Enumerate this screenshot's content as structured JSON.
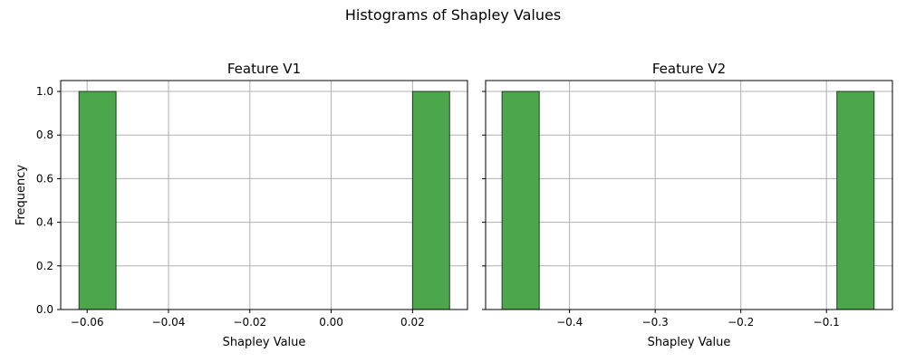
{
  "figure": {
    "suptitle": "Histograms of Shapley Values"
  },
  "colors": {
    "bar_fill": "#4ca64c",
    "bar_edge": "#1f3d1f",
    "grid": "#b0b0b0",
    "axis": "#000000"
  },
  "chart_data": [
    {
      "type": "bar",
      "title": "Feature V1",
      "xlabel": "Shapley Value",
      "ylabel": "Frequency",
      "xlim": [
        -0.0665,
        0.0335
      ],
      "ylim": [
        0.0,
        1.05
      ],
      "xticks": [
        -0.06,
        -0.04,
        -0.02,
        0.0,
        0.02
      ],
      "xtick_labels": [
        "−0.06",
        "−0.04",
        "−0.02",
        "0.00",
        "0.02"
      ],
      "yticks": [
        0.0,
        0.2,
        0.4,
        0.6,
        0.8,
        1.0
      ],
      "ytick_labels": [
        "0.0",
        "0.2",
        "0.4",
        "0.6",
        "0.8",
        "1.0"
      ],
      "grid": true,
      "bins": [
        {
          "x0": -0.062,
          "x1": -0.0529,
          "value": 1
        },
        {
          "x0": 0.02,
          "x1": 0.0291,
          "value": 1
        }
      ]
    },
    {
      "type": "bar",
      "title": "Feature V2",
      "xlabel": "Shapley Value",
      "ylabel": "",
      "xlim": [
        -0.498,
        -0.023
      ],
      "ylim": [
        0.0,
        1.05
      ],
      "xticks": [
        -0.4,
        -0.3,
        -0.2,
        -0.1
      ],
      "xtick_labels": [
        "−0.4",
        "−0.3",
        "−0.2",
        "−0.1"
      ],
      "yticks": [
        0.0,
        0.2,
        0.4,
        0.6,
        0.8,
        1.0
      ],
      "ytick_labels": [
        "",
        "",
        "",
        "",
        "",
        ""
      ],
      "grid": true,
      "bins": [
        {
          "x0": -0.4788,
          "x1": -0.4354,
          "value": 1
        },
        {
          "x0": -0.0878,
          "x1": -0.0444,
          "value": 1
        }
      ]
    }
  ]
}
